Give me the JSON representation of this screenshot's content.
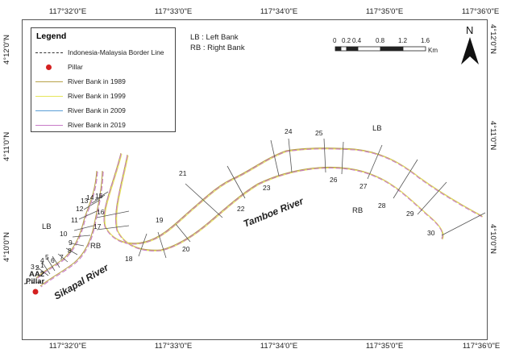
{
  "coords": {
    "top": [
      "117°32'0\"E",
      "117°33'0\"E",
      "117°34'0\"E",
      "117°35'0\"E",
      "117°36'0\"E"
    ],
    "bottom": [
      "117°32'0\"E",
      "117°33'0\"E",
      "117°34'0\"E",
      "117°35'0\"E",
      "117°36'0\"E"
    ],
    "left": [
      "4°12'0\"N",
      "4°11'0\"N",
      "4°10'0\"N"
    ],
    "right": [
      "4°12'0\"N",
      "4°11'0\"N",
      "4°10'0\"N"
    ]
  },
  "legend": {
    "title": "Legend",
    "items": [
      {
        "label": "Indonesia-Malaysia Border Line",
        "color": "#333333",
        "style": "dash-dot"
      },
      {
        "label": "Pillar",
        "color": "#d42020",
        "style": "dot"
      },
      {
        "label": "River Bank in 1989",
        "color": "#b8a24a",
        "style": "solid"
      },
      {
        "label": "River Bank in 1999",
        "color": "#e6e65a",
        "style": "solid"
      },
      {
        "label": "River Bank in 2009",
        "color": "#5a9ed6",
        "style": "solid"
      },
      {
        "label": "River Bank in 2019",
        "color": "#c77ac7",
        "style": "solid"
      }
    ]
  },
  "abbrev": {
    "lb": "LB : Left Bank",
    "rb": "RB : Right Bank"
  },
  "scale": {
    "ticks": [
      "0",
      "0.2",
      "0.4",
      "0.8",
      "1.2",
      "1.6"
    ],
    "unit": "Km"
  },
  "north": {
    "label": "N"
  },
  "rivers": {
    "tamboe": "Tamboe River",
    "sikapal": "Sikapal River"
  },
  "bank_labels": {
    "lb_left": "LB",
    "rb_left": "RB",
    "lb_right": "LB",
    "rb_right": "RB"
  },
  "pillar": {
    "line1": "AA2",
    "line2": "Pillar"
  },
  "sections": [
    "1",
    "2",
    "3",
    "4",
    "5",
    "6",
    "7",
    "8",
    "9",
    "10",
    "11",
    "12",
    "13",
    "14",
    "15",
    "16",
    "17",
    "18",
    "19",
    "20",
    "21",
    "22",
    "23",
    "24",
    "25",
    "26",
    "27",
    "28",
    "29",
    "30"
  ]
}
